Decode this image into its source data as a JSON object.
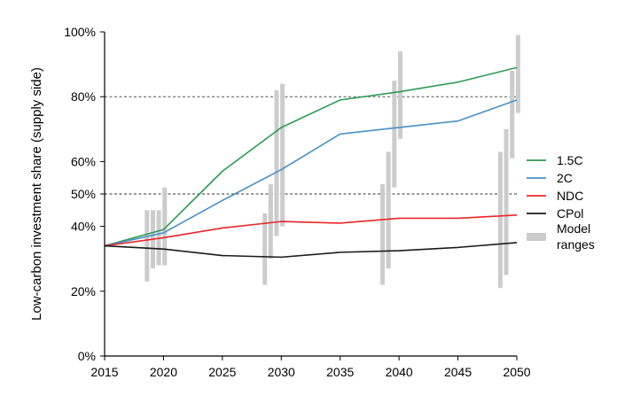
{
  "chart_data": {
    "type": "line",
    "ylabel": "Low-carbon investment share (supply side)",
    "xlabel": "",
    "xlim": [
      2015,
      2050
    ],
    "ylim": [
      0,
      100
    ],
    "x_ticks": [
      "2015",
      "2020",
      "2025",
      "2030",
      "2035",
      "2040",
      "2045",
      "2050"
    ],
    "y_ticks": [
      {
        "value": 0,
        "label": "0%"
      },
      {
        "value": 20,
        "label": "20%"
      },
      {
        "value": 40,
        "label": "40%"
      },
      {
        "value": 50,
        "label": "50%"
      },
      {
        "value": 60,
        "label": "60%"
      },
      {
        "value": 80,
        "label": "80%"
      },
      {
        "value": 100,
        "label": "100%"
      }
    ],
    "reference_lines": [
      80,
      50
    ],
    "x": [
      2015,
      2020,
      2025,
      2030,
      2035,
      2040,
      2045,
      2050
    ],
    "series": [
      {
        "name": "1.5C",
        "color": "#2e9a55",
        "values": [
          34,
          39,
          57,
          70.5,
          79,
          81.5,
          84.5,
          89
        ]
      },
      {
        "name": "2C",
        "color": "#4a90c4",
        "values": [
          34,
          38,
          48,
          57.5,
          68.5,
          70.5,
          72.5,
          79
        ]
      },
      {
        "name": "NDC",
        "color": "#e8262b",
        "values": [
          34,
          36.5,
          39.5,
          41.5,
          41,
          42.5,
          42.5,
          43.5
        ]
      },
      {
        "name": "CPol",
        "color": "#1a1a1a",
        "values": [
          34,
          33,
          31,
          30.5,
          32,
          32.5,
          33.5,
          35
        ]
      }
    ],
    "model_ranges": {
      "name": "Model ranges",
      "color": "#cccccc",
      "bars": [
        {
          "x": 2018.6,
          "low": 23,
          "high": 45
        },
        {
          "x": 2019.1,
          "low": 27,
          "high": 45
        },
        {
          "x": 2019.6,
          "low": 28,
          "high": 45
        },
        {
          "x": 2020.1,
          "low": 28,
          "high": 52
        },
        {
          "x": 2028.6,
          "low": 22,
          "high": 44
        },
        {
          "x": 2029.1,
          "low": 30,
          "high": 53
        },
        {
          "x": 2029.6,
          "low": 37,
          "high": 82
        },
        {
          "x": 2030.1,
          "low": 40,
          "high": 84
        },
        {
          "x": 2038.6,
          "low": 22,
          "high": 53
        },
        {
          "x": 2039.1,
          "low": 27,
          "high": 63
        },
        {
          "x": 2039.6,
          "low": 52,
          "high": 85
        },
        {
          "x": 2040.1,
          "low": 67,
          "high": 94
        },
        {
          "x": 2048.6,
          "low": 21,
          "high": 63
        },
        {
          "x": 2049.1,
          "low": 25,
          "high": 70
        },
        {
          "x": 2049.6,
          "low": 61,
          "high": 88
        },
        {
          "x": 2050.1,
          "low": 75,
          "high": 99
        }
      ]
    },
    "legend": {
      "placement": "right",
      "items": [
        "1.5C",
        "2C",
        "NDC",
        "CPol",
        "Model ranges"
      ],
      "model_label_lines": [
        "Model",
        "ranges"
      ]
    },
    "grid": false
  }
}
